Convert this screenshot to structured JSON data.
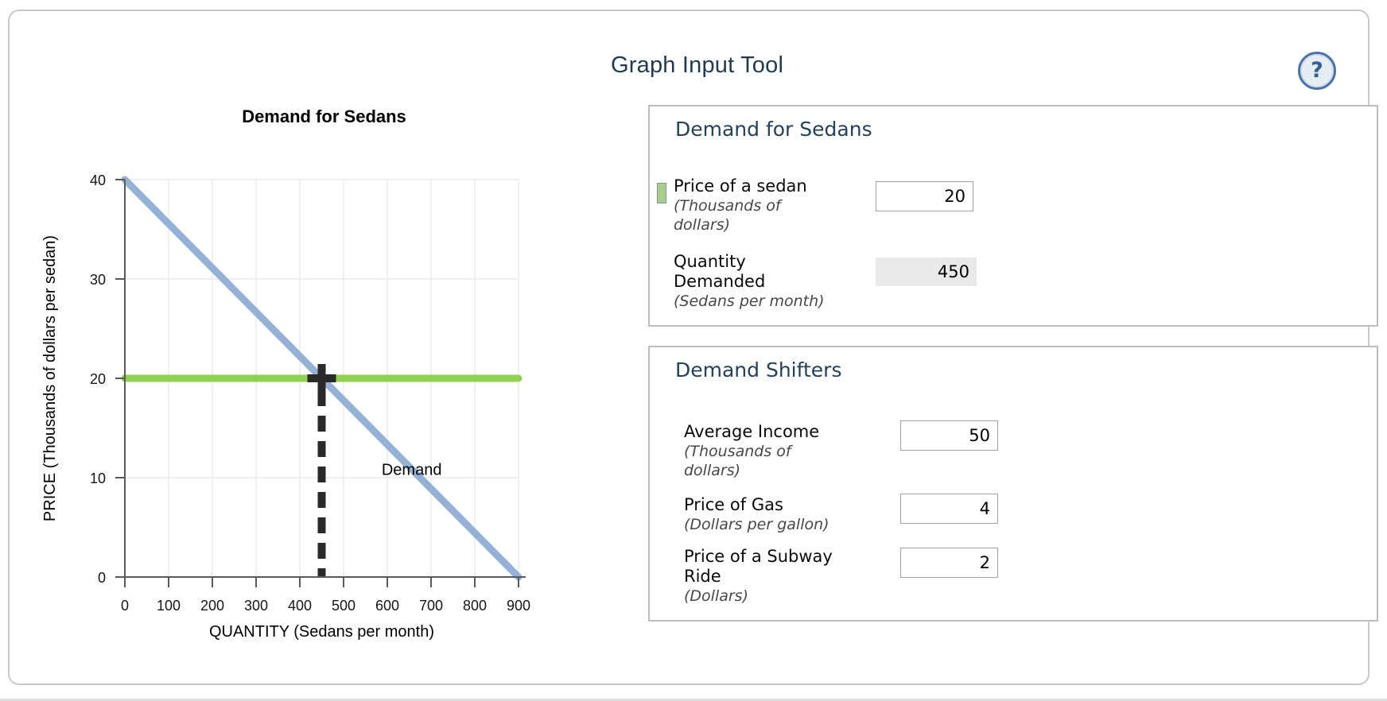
{
  "header": {
    "title": "Graph Input Tool",
    "help_icon_glyph": "?"
  },
  "chart_data": {
    "type": "line",
    "title": "Demand for Sedans",
    "xlabel": "QUANTITY (Sedans per month)",
    "ylabel": "PRICE (Thousands of dollars per sedan)",
    "xlim": [
      0,
      900
    ],
    "ylim": [
      0,
      40
    ],
    "x_ticks": [
      0,
      100,
      200,
      300,
      400,
      500,
      600,
      700,
      800,
      900
    ],
    "y_ticks": [
      0,
      10,
      20,
      30,
      40
    ],
    "grid": true,
    "legend_position": "inline-label",
    "series": [
      {
        "name": "Demand",
        "color": "#94b2d8",
        "width": 9,
        "points": [
          [
            0,
            40
          ],
          [
            900,
            0
          ]
        ],
        "label": "Demand",
        "label_pos": [
          587,
          10.3
        ]
      },
      {
        "name": "Price of a sedan",
        "color": "#92d050",
        "width": 9,
        "points": [
          [
            0,
            20
          ],
          [
            900,
            20
          ]
        ]
      }
    ],
    "guide": {
      "style": "dashed",
      "color": "#2a2a2a",
      "width": 10,
      "x": 450,
      "from_y": 20,
      "to_y": 0
    },
    "intersection": {
      "quantity": 450,
      "price": 20,
      "marker": "cross",
      "color": "#2a2a2a"
    }
  },
  "panel_demand": {
    "title": "Demand for Sedans",
    "rows": [
      {
        "label": "Price of a sedan",
        "sublabel": "(Thousands of dollars)",
        "value": "20",
        "editable": true,
        "swatch_color": "#a6d08c"
      },
      {
        "label": "Quantity Demanded",
        "sublabel": "(Sedans per month)",
        "value": "450",
        "editable": false
      }
    ]
  },
  "panel_shifters": {
    "title": "Demand Shifters",
    "rows": [
      {
        "label": "Average Income",
        "sublabel": "(Thousands of dollars)",
        "value": "50",
        "editable": true
      },
      {
        "label": "Price of Gas",
        "sublabel": "(Dollars per gallon)",
        "value": "4",
        "editable": true
      },
      {
        "label": "Price of a Subway Ride",
        "sublabel": "(Dollars)",
        "value": "2",
        "editable": true
      }
    ]
  },
  "colors": {
    "heading": "#21425e",
    "demand_line": "#94b2d8",
    "price_line": "#92d050",
    "guide": "#2a2a2a",
    "grid": "#ebebeb",
    "axis": "#5a5a5a"
  }
}
